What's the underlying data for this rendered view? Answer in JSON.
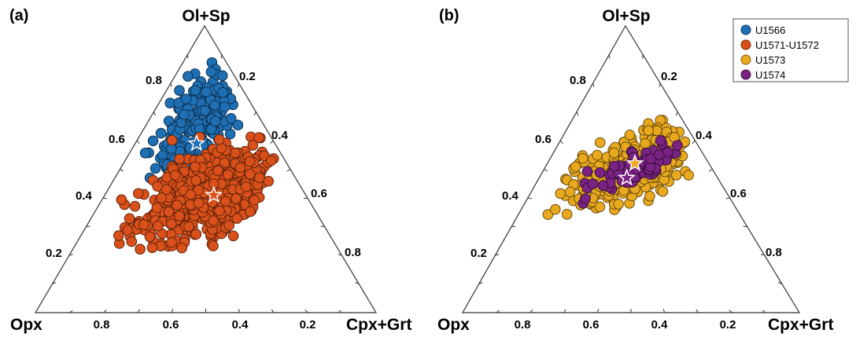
{
  "chart_data": [
    {
      "type": "scatter",
      "subtype": "ternary",
      "panel_label": "(a)",
      "vertices": {
        "top": "Ol+Sp",
        "left": "Opx",
        "right": "Cpx+Grt"
      },
      "tick_labels": {
        "left_edge": [
          "0.2",
          "0.4",
          "0.6",
          "0.8"
        ],
        "right_edge": [
          "0.2",
          "0.4",
          "0.6",
          "0.8"
        ],
        "bottom_edge": [
          "0.8",
          "0.6",
          "0.4",
          "0.2"
        ]
      },
      "series": [
        {
          "name": "U1566",
          "color": "#1f6fb4",
          "point_count_estimate": 230,
          "ol_sp_range": [
            0.38,
            0.92
          ],
          "cpx_grt_range": [
            0.03,
            0.28
          ]
        },
        {
          "name": "U1571-U1572",
          "color": "#d9501a",
          "point_count_estimate": 600,
          "ol_sp_range": [
            0.22,
            0.62
          ],
          "cpx_grt_range": [
            0.04,
            0.46
          ]
        }
      ],
      "markers": [
        {
          "type": "star",
          "series": "U1566",
          "ol_sp": 0.59,
          "cpx_grt": 0.18
        },
        {
          "type": "star",
          "series": "U1571-U1572",
          "ol_sp": 0.41,
          "cpx_grt": 0.32
        }
      ]
    },
    {
      "type": "scatter",
      "subtype": "ternary",
      "panel_label": "(b)",
      "vertices": {
        "top": "Ol+Sp",
        "left": "Opx",
        "right": "Cpx+Grt"
      },
      "tick_labels": {
        "left_edge": [
          "0.2",
          "0.4",
          "0.6",
          "0.8"
        ],
        "right_edge": [
          "0.2",
          "0.4",
          "0.6",
          "0.8"
        ],
        "bottom_edge": [
          "0.8",
          "0.6",
          "0.4",
          "0.2"
        ]
      },
      "series": [
        {
          "name": "U1573",
          "color": "#e9a91e",
          "point_count_estimate": 350,
          "ol_sp_range": [
            0.34,
            0.72
          ],
          "cpx_grt_range": [
            0.08,
            0.44
          ]
        },
        {
          "name": "U1574",
          "color": "#7b2384",
          "point_count_estimate": 75,
          "ol_sp_range": [
            0.38,
            0.62
          ],
          "cpx_grt_range": [
            0.12,
            0.4
          ]
        }
      ],
      "markers": [
        {
          "type": "star",
          "series": "U1573",
          "ol_sp": 0.52,
          "cpx_grt": 0.26
        },
        {
          "type": "star",
          "series": "U1574",
          "ol_sp": 0.47,
          "cpx_grt": 0.26
        }
      ]
    }
  ],
  "legend": {
    "placement": "top-right",
    "items": [
      {
        "label": "U1566",
        "color": "#1f6fb4"
      },
      {
        "label": "U1571-U1572",
        "color": "#d9501a"
      },
      {
        "label": "U1573",
        "color": "#e9a91e"
      },
      {
        "label": "U1574",
        "color": "#7b2384"
      }
    ]
  }
}
